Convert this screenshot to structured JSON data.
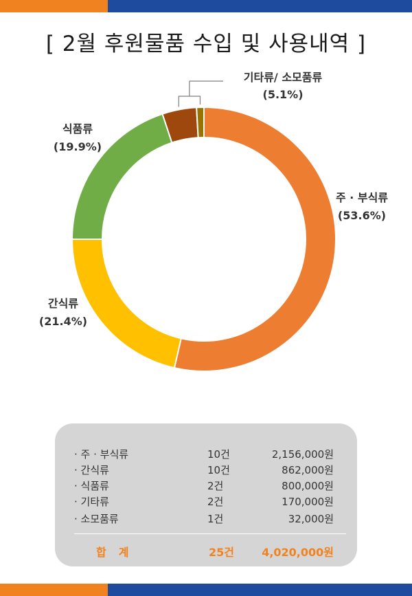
{
  "title": "[ 2월 후원물품 수입 및 사용내역 ]",
  "colors": {
    "band_orange": "#f0821f",
    "band_blue": "#1f4b9e",
    "summary_bg": "#d5d5d5",
    "total_text": "#f0821f"
  },
  "chart_data": {
    "type": "pie",
    "variant": "donut",
    "start_angle_deg": 0,
    "direction": "clockwise",
    "slices": [
      {
        "label": "주 · 부식류",
        "pct": 53.6,
        "pct_label": "(53.6%)",
        "color": "#ed7d31"
      },
      {
        "label": "간식류",
        "pct": 21.4,
        "pct_label": "(21.4%)",
        "color": "#ffc000"
      },
      {
        "label": "식품류",
        "pct": 19.9,
        "pct_label": "(19.9%)",
        "color": "#70ad47"
      },
      {
        "label": "기타류",
        "pct": 4.2,
        "color": "#9e480e"
      },
      {
        "label": "소모품류",
        "pct": 0.9,
        "color": "#997300"
      }
    ],
    "combined_label": {
      "name": "기타류/ 소모품류",
      "pct_label": "(5.1%)"
    }
  },
  "summary": {
    "rows": [
      {
        "name": "· 주 · 부식류",
        "count": "10건",
        "amount": "2,156,000원"
      },
      {
        "name": "· 간식류",
        "count": "10건",
        "amount": "862,000원"
      },
      {
        "name": "· 식품류",
        "count": "2건",
        "amount": "800,000원"
      },
      {
        "name": "· 기타류",
        "count": "2건",
        "amount": "170,000원"
      },
      {
        "name": "· 소모품류",
        "count": "1건",
        "amount": "32,000원"
      }
    ],
    "total": {
      "name": "합계",
      "count": "25건",
      "amount": "4,020,000원"
    }
  }
}
